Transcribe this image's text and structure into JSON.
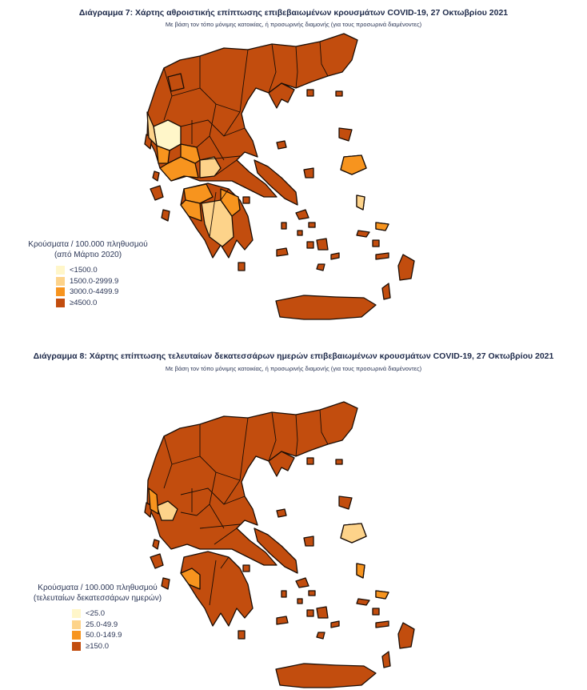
{
  "figure7": {
    "title": "Διάγραμμα 7: Χάρτης αθροιστικής επίπτωσης επιβεβαιωμένων κρουσμάτων COVID-19, 27 Οκτωβρίου 2021",
    "subtitle": "Με βάση τον τόπο μόνιμης κατοικίας, ή προσωρινής διαμονής (για τους προσωρινά διαμένοντες)",
    "legend": {
      "title_line1": "Κρούσματα / 100.000 πληθυσμού",
      "title_line2": "(από Μάρτιο 2020)",
      "items": [
        {
          "label": "<1500.0",
          "color": "#fff6c9"
        },
        {
          "label": "1500.0-2999.9",
          "color": "#fdd38a"
        },
        {
          "label": "3000.0-4499.9",
          "color": "#f7941e"
        },
        {
          "label": "≥4500.0",
          "color": "#c24d0e"
        }
      ]
    }
  },
  "figure8": {
    "title": "Διάγραμμα 8: Χάρτης επίπτωσης τελευταίων δεκατεσσάρων ημερών επιβεβαιωμένων κρουσμάτων COVID-19, 27 Οκτωβρίου 2021",
    "subtitle": "Με βάση τον τόπο μόνιμης κατοικίας, ή προσωρινής διαμονής (για τους προσωρινά διαμένοντες)",
    "legend": {
      "title_line1": "Κρούσματα / 100.000 πληθυσμού",
      "title_line2": "(τελευταίων δεκατεσσάρων ημερών)",
      "items": [
        {
          "label": "<25.0",
          "color": "#fff6c9"
        },
        {
          "label": "25.0-49.9",
          "color": "#fdd38a"
        },
        {
          "label": "50.0-149.9",
          "color": "#f7941e"
        },
        {
          "label": "≥150.0",
          "color": "#c24d0e"
        }
      ]
    }
  }
}
